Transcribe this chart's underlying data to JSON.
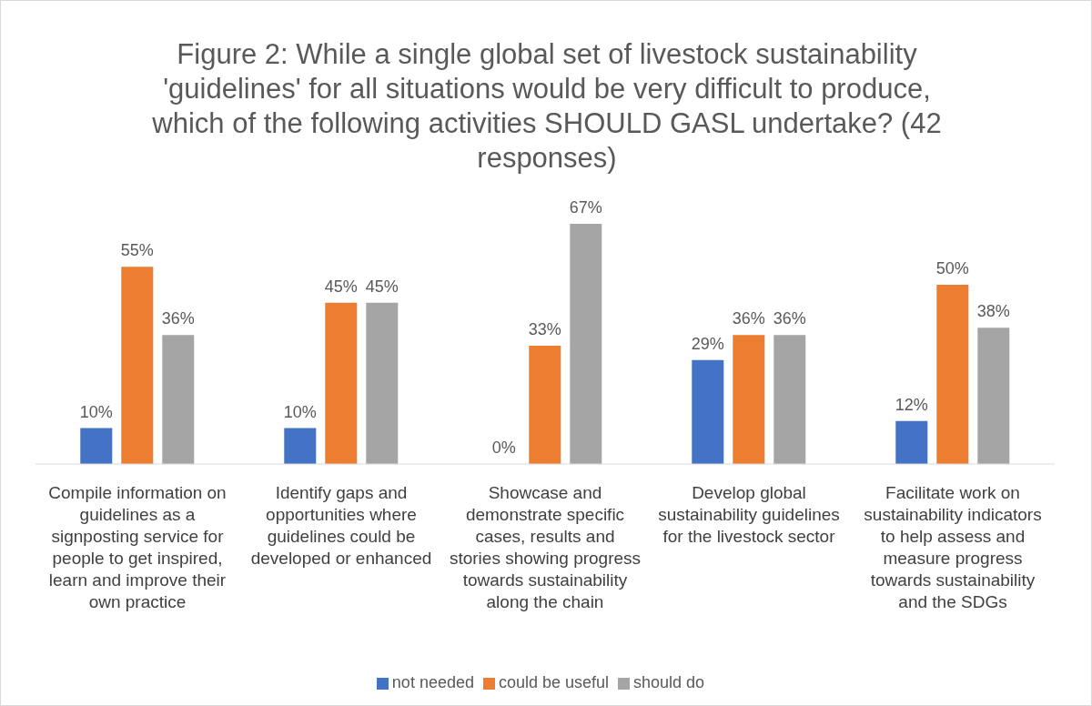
{
  "chart_data": {
    "type": "bar",
    "title": "Figure 2: While a single global set of livestock sustainability 'guidelines' for all situations would be very difficult to produce, which of the following activities SHOULD GASL undertake? (42 responses)",
    "categories": [
      "Compile information on guidelines as a signposting service for people to get inspired, learn and improve their own practice",
      "Identify gaps and opportunities where guidelines could be developed or enhanced",
      "Showcase and demonstrate specific cases, results and stories showing progress towards sustainability along the chain",
      "Develop global sustainability guidelines for the livestock sector",
      "Facilitate work on sustainability indicators to help assess and measure progress towards sustainability and the SDGs"
    ],
    "series": [
      {
        "name": "not needed",
        "color": "#4472c4",
        "values": [
          10,
          10,
          0,
          29,
          12
        ],
        "value_labels": [
          "10%",
          "10%",
          "0%",
          "29%",
          "12%"
        ]
      },
      {
        "name": "could be useful",
        "color": "#ed7d31",
        "values": [
          55,
          45,
          33,
          36,
          50
        ],
        "value_labels": [
          "55%",
          "45%",
          "33%",
          "36%",
          "50%"
        ]
      },
      {
        "name": "should do",
        "color": "#a5a5a5",
        "values": [
          36,
          45,
          67,
          36,
          38
        ],
        "value_labels": [
          "36%",
          "45%",
          "67%",
          "36%",
          "38%"
        ]
      }
    ],
    "grid": false,
    "legend": "bottom"
  }
}
